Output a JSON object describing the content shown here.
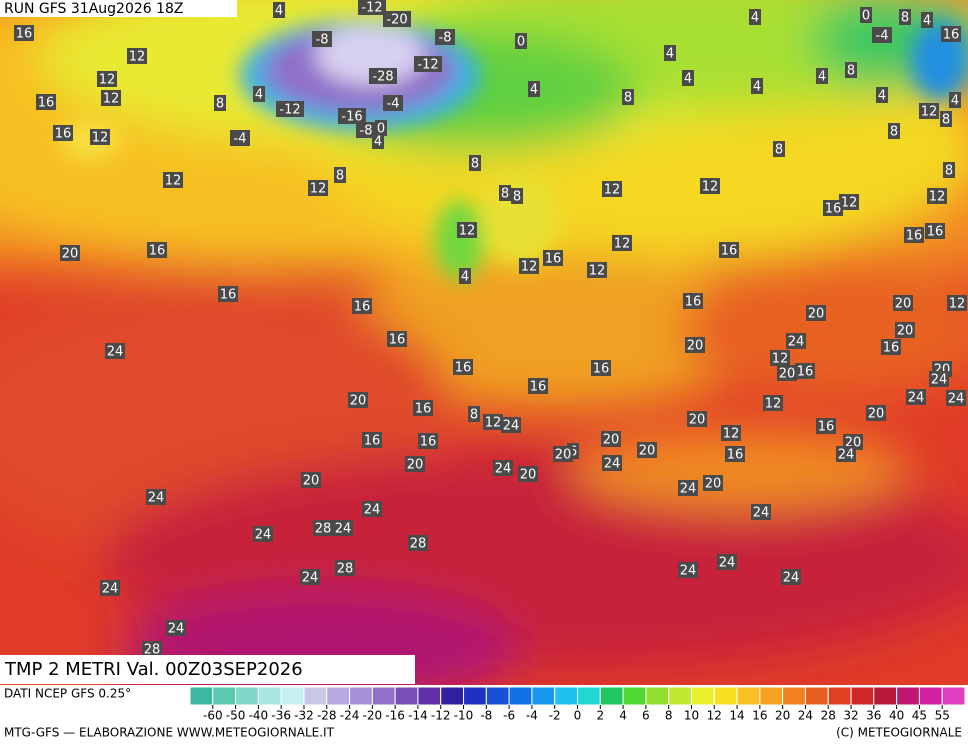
{
  "header": {
    "run": "RUN GFS 31Aug2026 18Z",
    "title": "TMP 2 METRI Val. 00Z03SEP2026"
  },
  "footer": {
    "source": "DATI NCEP GFS 0.25°",
    "credit": "MTG-GFS — ELABORAZIONE WWW.METEOGIORNALE.IT",
    "copyright": "(C) METEOGIORNALE"
  },
  "colorbar": {
    "ticks": [
      -60,
      -50,
      -40,
      -36,
      -32,
      -28,
      -24,
      -20,
      -16,
      -14,
      -12,
      -10,
      -8,
      -6,
      -4,
      -2,
      0,
      2,
      4,
      6,
      8,
      10,
      12,
      14,
      16,
      20,
      24,
      28,
      32,
      36,
      40,
      45,
      55
    ],
    "colors": [
      "#3cb8a0",
      "#5cc8b0",
      "#80d8c8",
      "#a8e8e0",
      "#c8f0f0",
      "#c8c8e8",
      "#b8a8e0",
      "#a890d8",
      "#9070c8",
      "#7850b8",
      "#6030a8",
      "#3020a0",
      "#2030c0",
      "#1850d8",
      "#1070e8",
      "#1898f0",
      "#20c0f0",
      "#20d8d0",
      "#20c860",
      "#50d830",
      "#90e030",
      "#c0e830",
      "#e8f030",
      "#f8e020",
      "#f8c020",
      "#f8a020",
      "#f08020",
      "#e86020",
      "#e04020",
      "#d02828",
      "#b81838",
      "#c01870",
      "#d020a0",
      "#e040c0"
    ]
  },
  "map_labels": [
    16,
    12,
    12,
    12,
    16,
    16,
    12,
    8,
    12,
    12,
    8,
    8,
    8,
    8,
    12,
    12,
    8,
    8,
    8,
    4,
    4,
    4,
    4,
    4,
    4,
    8,
    4,
    8,
    4,
    0,
    -4,
    16,
    12,
    8,
    4,
    8,
    12,
    16,
    16,
    12,
    16,
    16,
    12,
    12,
    16,
    12,
    12,
    4,
    16,
    20,
    16,
    16,
    16,
    16,
    20,
    20,
    12,
    20,
    16,
    24,
    20,
    12,
    20,
    16,
    20,
    24,
    24,
    24,
    20,
    12,
    16,
    20,
    24,
    12,
    16,
    20,
    24,
    20,
    20,
    20,
    24,
    6,
    20,
    16,
    16,
    16,
    24,
    20,
    16,
    8,
    12,
    24,
    16,
    16,
    20,
    24,
    20,
    20,
    24,
    24,
    24,
    28,
    24,
    28,
    24,
    28,
    24,
    24,
    24,
    24,
    24,
    24,
    28,
    -4,
    -12,
    -8,
    -12,
    -20,
    -8,
    0,
    -12,
    -28,
    -4,
    -16,
    -8,
    0,
    4,
    4,
    4
  ]
}
